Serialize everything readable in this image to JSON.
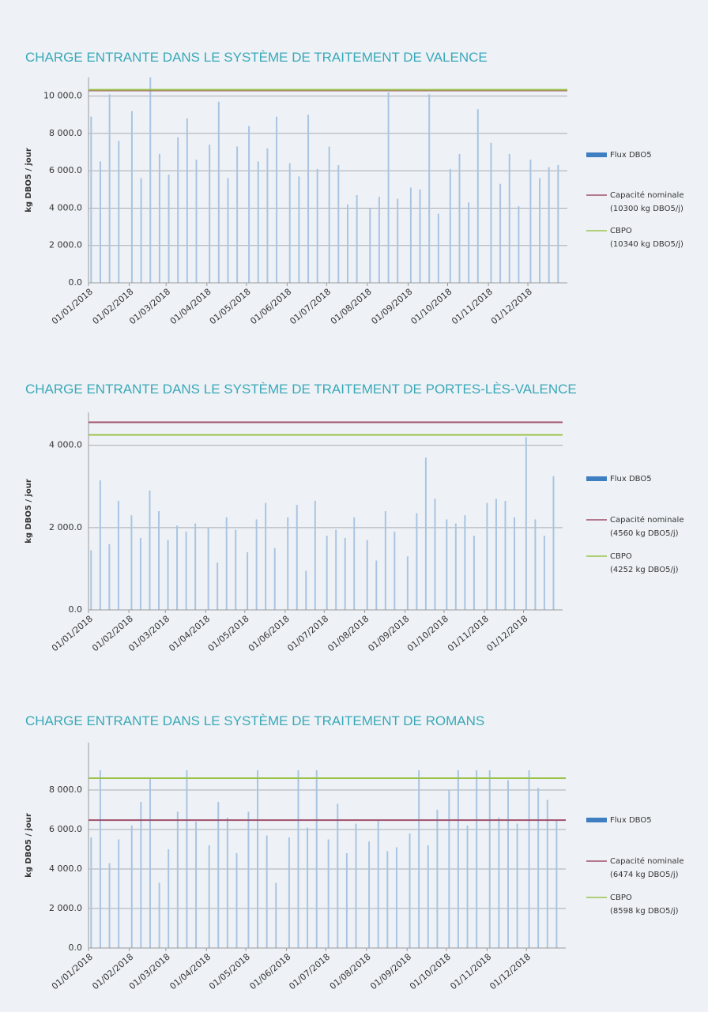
{
  "chart_data": [
    {
      "type": "bar",
      "title": "CHARGE ENTRANTE DANS LE SYSTÈME DE TRAITEMENT DE VALENCE",
      "y_label": "kg DBO5 / jour",
      "x": [
        "03/01/2018",
        "10/01/2018",
        "17/01/2018",
        "24/01/2018",
        "03/02/2018",
        "10/02/2018",
        "17/02/2018",
        "24/02/2018",
        "03/03/2018",
        "10/03/2018",
        "17/03/2018",
        "24/03/2018",
        "03/04/2018",
        "10/04/2018",
        "17/04/2018",
        "24/04/2018",
        "03/05/2018",
        "10/05/2018",
        "17/05/2018",
        "24/05/2018",
        "03/06/2018",
        "10/06/2018",
        "17/06/2018",
        "24/06/2018",
        "03/07/2018",
        "10/07/2018",
        "17/07/2018",
        "24/07/2018",
        "03/08/2018",
        "10/08/2018",
        "17/08/2018",
        "24/08/2018",
        "03/09/2018",
        "10/09/2018",
        "17/09/2018",
        "24/09/2018",
        "03/10/2018",
        "10/10/2018",
        "17/10/2018",
        "24/10/2018",
        "03/11/2018",
        "10/11/2018",
        "17/11/2018",
        "24/11/2018",
        "03/12/2018",
        "10/12/2018",
        "17/12/2018",
        "24/12/2018"
      ],
      "series": [
        {
          "name": "Flux DBO5",
          "color": "#a9c4e2",
          "values": [
            8900,
            6500,
            10100,
            7600,
            9200,
            5600,
            11000,
            6900,
            5800,
            7800,
            8800,
            6600,
            7400,
            9700,
            5600,
            7300,
            8400,
            6500,
            7200,
            8900,
            6400,
            5700,
            9000,
            6100,
            7300,
            6300,
            4200,
            4700,
            4000,
            4600,
            10200,
            4500,
            5100,
            5000,
            10100,
            3700,
            6100,
            6900,
            4300,
            9300,
            7500,
            5300,
            6900,
            4100,
            6600,
            5600,
            6200,
            6300
          ]
        }
      ],
      "reference_lines": [
        {
          "name": "Capacité nominale",
          "label": "(10300 kg DBO5/j)",
          "value": 10300,
          "color": "#a0506a"
        },
        {
          "name": "CBPO",
          "label": "(10340 kg DBO5/j)",
          "value": 10340,
          "color": "#9cc24a"
        }
      ],
      "xlim": [
        "01/01/2018",
        "31/12/2018"
      ],
      "xticks": [
        "01/01/2018",
        "01/02/2018",
        "01/03/2018",
        "01/04/2018",
        "01/05/2018",
        "01/06/2018",
        "01/07/2018",
        "01/08/2018",
        "01/09/2018",
        "01/10/2018",
        "01/11/2018",
        "01/12/2018"
      ],
      "ylim": [
        0,
        11000
      ],
      "yticks": [
        {
          "value": 0,
          "label": "0.0"
        },
        {
          "value": 2000,
          "label": "2 000.0"
        },
        {
          "value": 4000,
          "label": "4 000.0"
        },
        {
          "value": 6000,
          "label": "6 000.0"
        },
        {
          "value": 8000,
          "label": "8 000.0"
        },
        {
          "value": 10000,
          "label": "10 000.0"
        }
      ],
      "grid": true
    },
    {
      "type": "bar",
      "title": "CHARGE ENTRANTE DANS LE SYSTÈME DE TRAITEMENT DE PORTES-LÈS-VALENCE",
      "y_label": "kg DBO5 / jour",
      "x": [
        "03/01/2018",
        "10/01/2018",
        "17/01/2018",
        "24/01/2018",
        "03/02/2018",
        "10/02/2018",
        "17/02/2018",
        "24/02/2018",
        "03/03/2018",
        "10/03/2018",
        "17/03/2018",
        "24/03/2018",
        "03/04/2018",
        "10/04/2018",
        "17/04/2018",
        "24/04/2018",
        "03/05/2018",
        "10/05/2018",
        "17/05/2018",
        "24/05/2018",
        "03/06/2018",
        "10/06/2018",
        "17/06/2018",
        "24/06/2018",
        "03/07/2018",
        "10/07/2018",
        "17/07/2018",
        "24/07/2018",
        "03/08/2018",
        "10/08/2018",
        "17/08/2018",
        "24/08/2018",
        "03/09/2018",
        "10/09/2018",
        "17/09/2018",
        "24/09/2018",
        "03/10/2018",
        "10/10/2018",
        "17/10/2018",
        "24/10/2018",
        "03/11/2018",
        "10/11/2018",
        "17/11/2018",
        "24/11/2018",
        "03/12/2018",
        "10/12/2018",
        "17/12/2018",
        "24/12/2018"
      ],
      "series": [
        {
          "name": "Flux DBO5",
          "color": "#a9c4e2",
          "values": [
            1450,
            3150,
            1600,
            2650,
            2300,
            1750,
            2900,
            2400,
            1700,
            2050,
            1900,
            2100,
            2000,
            1150,
            2250,
            1950,
            1400,
            2200,
            2600,
            1500,
            2250,
            2550,
            950,
            2650,
            1800,
            1950,
            1750,
            2250,
            1700,
            1200,
            2400,
            1900,
            1300,
            2350,
            3700,
            2700,
            2200,
            2100,
            2300,
            1800,
            2600,
            2700,
            2650,
            2250,
            4200,
            2200,
            1800,
            3250
          ]
        }
      ],
      "reference_lines": [
        {
          "name": "Capacité nominale",
          "label": "(4560 kg DBO5/j)",
          "value": 4560,
          "color": "#a0506a"
        },
        {
          "name": "CBPO",
          "label": "(4252 kg DBO5/j)",
          "value": 4252,
          "color": "#9cc24a"
        }
      ],
      "xlim": [
        "01/01/2018",
        "31/12/2018"
      ],
      "xticks": [
        "01/01/2018",
        "01/02/2018",
        "01/03/2018",
        "01/04/2018",
        "01/05/2018",
        "01/06/2018",
        "01/07/2018",
        "01/08/2018",
        "01/09/2018",
        "01/10/2018",
        "01/11/2018",
        "01/12/2018"
      ],
      "ylim": [
        0,
        4800
      ],
      "yticks": [
        {
          "value": 0,
          "label": "0.0"
        },
        {
          "value": 2000,
          "label": "2 000.0"
        },
        {
          "value": 4000,
          "label": "4 000.0"
        }
      ],
      "grid": true
    },
    {
      "type": "bar",
      "title": "CHARGE ENTRANTE DANS LE SYSTÈME DE TRAITEMENT DE ROMANS",
      "y_label": "kg DBO5 / jour",
      "x": [
        "03/01/2018",
        "10/01/2018",
        "17/01/2018",
        "24/01/2018",
        "03/02/2018",
        "10/02/2018",
        "17/02/2018",
        "24/02/2018",
        "03/03/2018",
        "10/03/2018",
        "17/03/2018",
        "24/03/2018",
        "03/04/2018",
        "10/04/2018",
        "17/04/2018",
        "24/04/2018",
        "03/05/2018",
        "10/05/2018",
        "17/05/2018",
        "24/05/2018",
        "03/06/2018",
        "10/06/2018",
        "17/06/2018",
        "24/06/2018",
        "03/07/2018",
        "10/07/2018",
        "17/07/2018",
        "24/07/2018",
        "03/08/2018",
        "10/08/2018",
        "17/08/2018",
        "24/08/2018",
        "03/09/2018",
        "10/09/2018",
        "17/09/2018",
        "24/09/2018",
        "03/10/2018",
        "10/10/2018",
        "17/10/2018",
        "24/10/2018",
        "03/11/2018",
        "10/11/2018",
        "17/11/2018",
        "24/11/2018",
        "03/12/2018",
        "10/12/2018",
        "17/12/2018",
        "24/12/2018"
      ],
      "series": [
        {
          "name": "Flux DBO5",
          "color": "#a9c4e2",
          "values": [
            5600,
            9000,
            4300,
            5500,
            6200,
            7400,
            8600,
            3300,
            5000,
            6900,
            9000,
            6400,
            5200,
            7400,
            6600,
            4800,
            6900,
            9000,
            5700,
            3300,
            5600,
            9000,
            6100,
            9000,
            5500,
            7300,
            4800,
            6300,
            5400,
            6500,
            4900,
            5100,
            5800,
            9000,
            5200,
            7000,
            8000,
            9000,
            6200,
            9000,
            9000,
            6600,
            8500,
            6300,
            9000,
            8100,
            7500,
            6500
          ]
        }
      ],
      "reference_lines": [
        {
          "name": "Capacité nominale",
          "label": "(6474 kg DBO5/j)",
          "value": 6474,
          "color": "#a0506a"
        },
        {
          "name": "CBPO",
          "label": "(8598 kg DBO5/j)",
          "value": 8598,
          "color": "#9cc24a"
        }
      ],
      "xlim": [
        "01/01/2018",
        "31/12/2018"
      ],
      "xticks": [
        "01/01/2018",
        "01/02/2018",
        "01/03/2018",
        "01/04/2018",
        "01/05/2018",
        "01/06/2018",
        "01/07/2018",
        "01/08/2018",
        "01/09/2018",
        "01/10/2018",
        "01/11/2018",
        "01/12/2018"
      ],
      "ylim": [
        0,
        10400
      ],
      "yticks": [
        {
          "value": 0,
          "label": "0.0"
        },
        {
          "value": 2000,
          "label": "2 000.0"
        },
        {
          "value": 4000,
          "label": "4 000.0"
        },
        {
          "value": 6000,
          "label": "6 000.0"
        },
        {
          "value": 8000,
          "label": "8 000.0"
        }
      ],
      "grid": true
    }
  ]
}
